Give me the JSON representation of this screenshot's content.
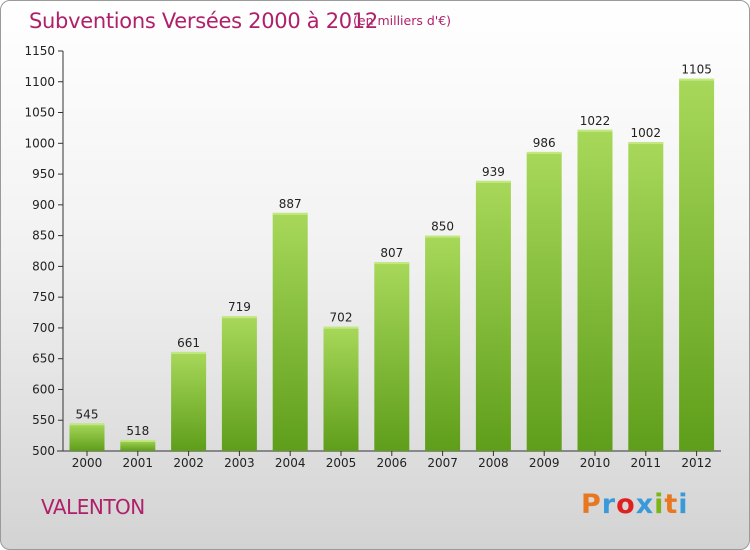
{
  "header": {
    "title": "Subventions Versées 2000 à 2012",
    "unit": "(en milliers d'€)"
  },
  "footer": {
    "place": "VALENTON",
    "logo": "Proxiti",
    "logo_colors": [
      "#e87722",
      "#3a9ad9",
      "#e02020",
      "#3a9ad9",
      "#7cb518",
      "#e87722",
      "#3a9ad9"
    ]
  },
  "colors": {
    "accent": "#b0206a",
    "bar_light": "#a8d85a",
    "bar_dark": "#5e9e1a"
  },
  "chart_data": {
    "type": "bar",
    "categories": [
      "2000",
      "2001",
      "2002",
      "2003",
      "2004",
      "2005",
      "2006",
      "2007",
      "2008",
      "2009",
      "2010",
      "2011",
      "2012"
    ],
    "values": [
      545,
      518,
      661,
      719,
      887,
      702,
      807,
      850,
      939,
      986,
      1022,
      1002,
      1105
    ],
    "title": "Subventions Versées 2000 à 2012",
    "xlabel": "",
    "ylabel": "",
    "ylim": [
      500,
      1150
    ],
    "yticks": [
      500,
      550,
      600,
      650,
      700,
      750,
      800,
      850,
      900,
      950,
      1000,
      1050,
      1100,
      1150
    ],
    "grid": false,
    "legend": "none"
  }
}
